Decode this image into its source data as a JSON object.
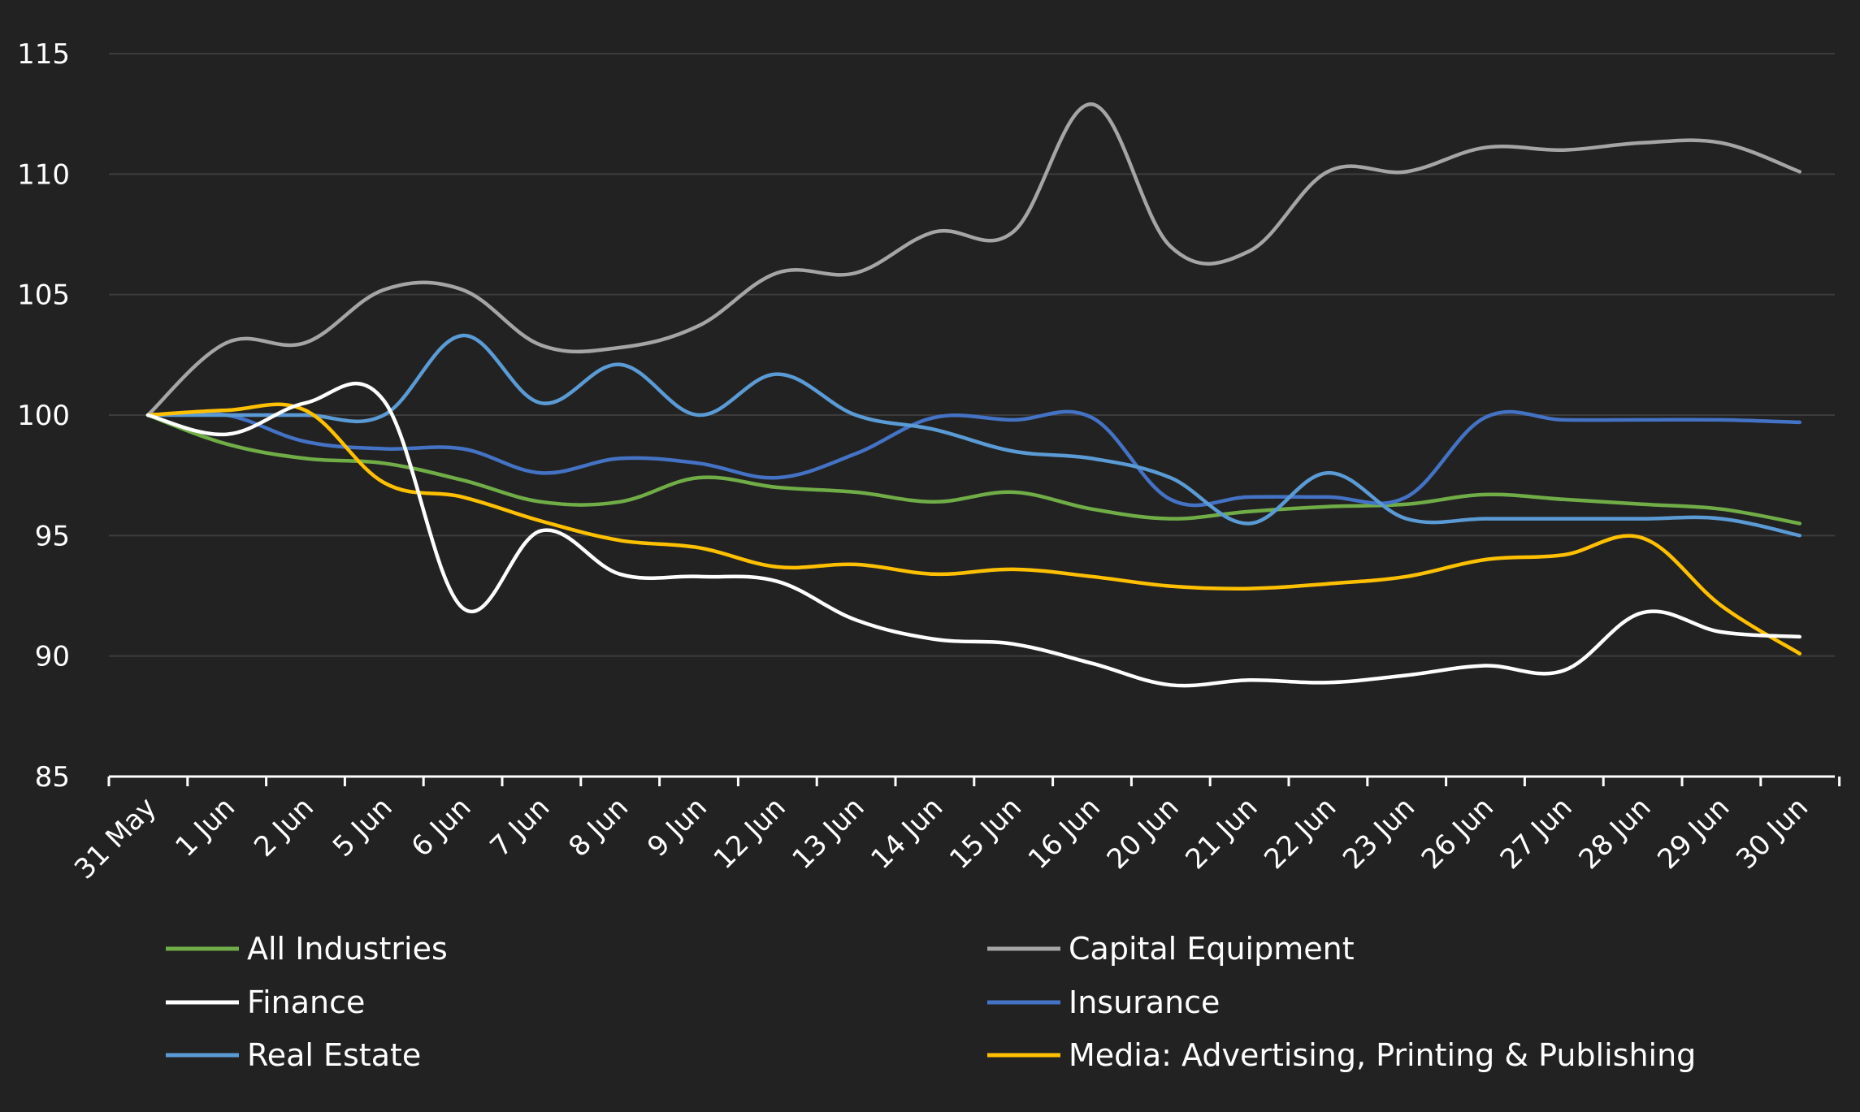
{
  "chart_data": {
    "type": "line",
    "title": "",
    "xlabel": "",
    "ylabel": "",
    "ylim": [
      85,
      115
    ],
    "yticks": [
      85,
      90,
      95,
      100,
      105,
      110,
      115
    ],
    "grid": true,
    "legend_position": "bottom",
    "background": "#222222",
    "categories": [
      "31 May",
      "1 Jun",
      "2 Jun",
      "5 Jun",
      "6 Jun",
      "7 Jun",
      "8 Jun",
      "9 Jun",
      "12 Jun",
      "13 Jun",
      "14 Jun",
      "15 Jun",
      "16 Jun",
      "20 Jun",
      "21 Jun",
      "22 Jun",
      "23 Jun",
      "26 Jun",
      "27 Jun",
      "28 Jun",
      "29 Jun",
      "30 Jun"
    ],
    "series": [
      {
        "name": "All Industries",
        "color": "#70ad47",
        "values": [
          100,
          98.8,
          98.2,
          98.0,
          97.3,
          96.4,
          96.4,
          97.4,
          97.0,
          96.8,
          96.4,
          96.8,
          96.1,
          95.7,
          96.0,
          96.2,
          96.3,
          96.7,
          96.5,
          96.3,
          96.1,
          95.5
        ]
      },
      {
        "name": "Capital Equipment",
        "color": "#a5a5a5",
        "values": [
          100,
          103.0,
          103.0,
          105.2,
          105.2,
          102.9,
          102.8,
          103.7,
          105.9,
          105.9,
          107.6,
          107.6,
          112.9,
          107.0,
          106.8,
          110.1,
          110.1,
          111.1,
          111.0,
          111.3,
          111.3,
          110.1
        ]
      },
      {
        "name": "Finance",
        "color": "#ffffff",
        "values": [
          100,
          99.2,
          100.5,
          100.6,
          92.0,
          95.2,
          93.4,
          93.3,
          93.1,
          91.5,
          90.7,
          90.5,
          89.7,
          88.8,
          89.0,
          88.9,
          89.2,
          89.6,
          89.4,
          91.8,
          91.0,
          90.8
        ]
      },
      {
        "name": "Insurance",
        "color": "#4472c4",
        "values": [
          100,
          100.0,
          98.9,
          98.6,
          98.6,
          97.6,
          98.2,
          98.0,
          97.4,
          98.4,
          99.9,
          99.8,
          99.9,
          96.5,
          96.6,
          96.6,
          96.6,
          99.9,
          99.8,
          99.8,
          99.8,
          99.7
        ]
      },
      {
        "name": "Real Estate",
        "color": "#5b9bd5",
        "values": [
          100,
          100.0,
          100.0,
          100.0,
          103.3,
          100.5,
          102.1,
          100.0,
          101.7,
          100.0,
          99.4,
          98.5,
          98.2,
          97.4,
          95.5,
          97.6,
          95.7,
          95.7,
          95.7,
          95.7,
          95.7,
          95.0
        ]
      },
      {
        "name": "Media: Advertising, Printing & Publishing",
        "color": "#ffc000",
        "values": [
          100,
          100.2,
          100.2,
          97.2,
          96.6,
          95.6,
          94.8,
          94.5,
          93.7,
          93.8,
          93.4,
          93.6,
          93.3,
          92.9,
          92.8,
          93.0,
          93.3,
          94.0,
          94.2,
          94.9,
          92.1,
          90.1
        ]
      }
    ]
  }
}
